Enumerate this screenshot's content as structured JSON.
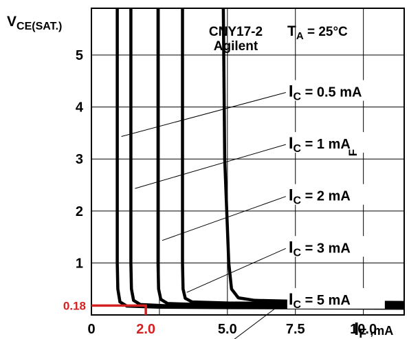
{
  "chart_data": {
    "type": "line",
    "ylabel_main": "V",
    "ylabel_sub": "CE(SAT.)",
    "xlabel_main": "I",
    "xlabel_sub": "F",
    "xlabel_unit": " ,mA",
    "device": "CNY17-2",
    "manufacturer": "Agilent",
    "temp_main": "T",
    "temp_sub": "A",
    "temp_value": " = 25°C",
    "side_mark": "F",
    "xlim": [
      0,
      11.5
    ],
    "ylim": [
      0,
      5.9
    ],
    "xticks": [
      {
        "value": 0,
        "label": "0"
      },
      {
        "value": 5.0,
        "label": "5.0"
      },
      {
        "value": 7.5,
        "label": "7.5"
      },
      {
        "value": 10.0,
        "label": "10.0"
      }
    ],
    "yticks": [
      {
        "value": 1,
        "label": "1"
      },
      {
        "value": 2,
        "label": "2"
      },
      {
        "value": 3,
        "label": "3"
      },
      {
        "value": 4,
        "label": "4"
      },
      {
        "value": 5,
        "label": "5"
      }
    ],
    "grid": true,
    "series": [
      {
        "name": "I_C = 0.5 mA",
        "label_main": "I",
        "label_sub": "C",
        "label_value": " = 0.5 mA",
        "label_at": [
          7.25,
          4.2
        ],
        "points": [
          [
            0.95,
            5.9
          ],
          [
            0.95,
            1.0
          ],
          [
            0.97,
            0.5
          ],
          [
            1.05,
            0.25
          ],
          [
            1.3,
            0.17
          ],
          [
            2.5,
            0.15
          ],
          [
            5,
            0.14
          ],
          [
            11.5,
            0.13
          ]
        ]
      },
      {
        "name": "I_C = 1 mA",
        "label_main": "I",
        "label_sub": "C",
        "label_value": " = 1 mA",
        "label_at": [
          7.25,
          3.2
        ],
        "points": [
          [
            1.45,
            5.9
          ],
          [
            1.45,
            1.0
          ],
          [
            1.47,
            0.5
          ],
          [
            1.55,
            0.28
          ],
          [
            1.8,
            0.2
          ],
          [
            3,
            0.17
          ],
          [
            6,
            0.16
          ],
          [
            11.5,
            0.15
          ]
        ]
      },
      {
        "name": "I_C = 2 mA",
        "label_main": "I",
        "label_sub": "C",
        "label_value": " = 2 mA",
        "label_at": [
          7.25,
          2.2
        ],
        "points": [
          [
            2.45,
            5.9
          ],
          [
            2.45,
            1.0
          ],
          [
            2.47,
            0.5
          ],
          [
            2.55,
            0.3
          ],
          [
            2.8,
            0.22
          ],
          [
            4,
            0.2
          ],
          [
            7,
            0.19
          ],
          [
            11.5,
            0.18
          ]
        ]
      },
      {
        "name": "I_C = 3 mA",
        "label_main": "I",
        "label_sub": "C",
        "label_value": " = 3 mA",
        "label_at": [
          7.25,
          1.2
        ],
        "points": [
          [
            3.35,
            5.9
          ],
          [
            3.35,
            1.0
          ],
          [
            3.37,
            0.5
          ],
          [
            3.45,
            0.32
          ],
          [
            3.7,
            0.25
          ],
          [
            5,
            0.23
          ],
          [
            8,
            0.22
          ],
          [
            11.5,
            0.21
          ]
        ]
      },
      {
        "name": "I_C = 5 mA",
        "label_main": "I",
        "label_sub": "C",
        "label_value": " = 5 mA",
        "label_at": [
          7.25,
          0.2
        ],
        "points": [
          [
            4.85,
            5.9
          ],
          [
            4.9,
            3.0
          ],
          [
            5.05,
            1.0
          ],
          [
            5.15,
            0.5
          ],
          [
            5.4,
            0.33
          ],
          [
            6,
            0.28
          ],
          [
            8.5,
            0.25
          ],
          [
            11.5,
            0.24
          ]
        ]
      }
    ],
    "marker": {
      "x": 2.0,
      "y": 0.18,
      "xlabel": "2.0",
      "ylabel": "0.18",
      "color": "#d42020"
    },
    "line_color": "#000000"
  }
}
